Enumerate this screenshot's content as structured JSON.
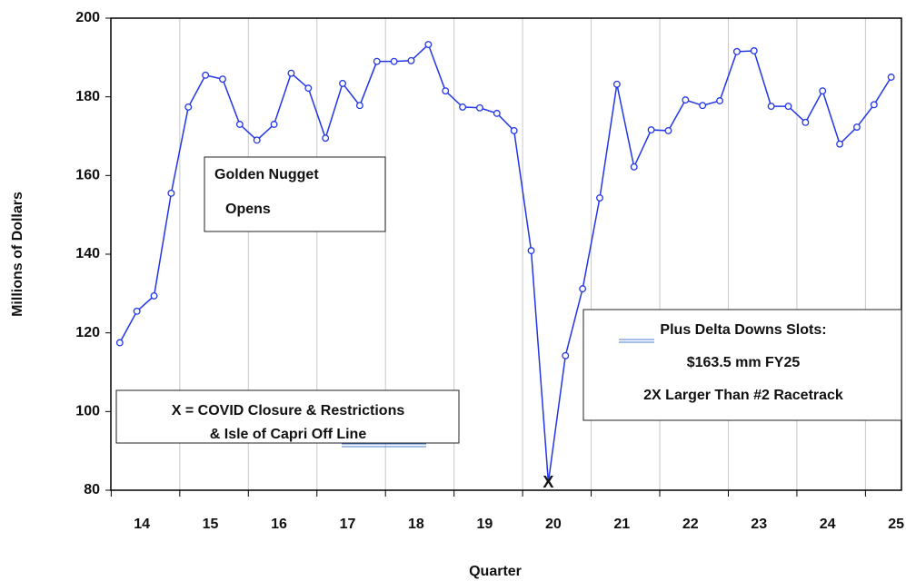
{
  "chart_data": {
    "type": "line",
    "x_label": "Quarter",
    "y_label": "Millions of Dollars",
    "x": [
      14,
      14.25,
      14.5,
      14.75,
      15,
      15.25,
      15.5,
      15.75,
      16,
      16.25,
      16.5,
      16.75,
      17,
      17.25,
      17.5,
      17.75,
      18,
      18.25,
      18.5,
      18.75,
      19,
      19.25,
      19.5,
      19.75,
      20,
      20.25,
      20.5,
      20.75,
      21,
      21.25,
      21.5,
      21.75,
      22,
      22.25,
      22.5,
      22.75,
      23,
      23.25,
      23.5,
      23.75,
      24,
      24.25,
      24.5,
      24.75,
      25,
      25.25
    ],
    "series": [
      {
        "color": "#2236e8",
        "values": [
          117.5,
          125.5,
          129.4,
          155.5,
          177.4,
          185.5,
          184.5,
          173,
          169,
          173,
          186,
          182.2,
          169.5,
          183.4,
          177.8,
          189,
          189,
          189.2,
          193.3,
          181.5,
          177.4,
          177.2,
          175.8,
          171.4,
          140.9,
          82,
          114.2,
          131.2,
          154.3,
          183.2,
          162.2,
          171.6,
          171.4,
          179.2,
          177.8,
          179,
          191.5,
          191.7,
          177.6,
          177.6,
          173.5,
          181.5,
          168,
          172.3,
          178,
          185
        ]
      }
    ],
    "highlight": {
      "index": 25,
      "label": "X",
      "color": "#8b1a1a"
    },
    "xlim": [
      13.87,
      25.4
    ],
    "xticks": [
      14,
      15,
      16,
      17,
      18,
      19,
      20,
      21,
      22,
      23,
      24,
      25
    ],
    "ylim": [
      80,
      200
    ],
    "yticks": [
      80,
      100,
      120,
      140,
      160,
      180,
      200
    ],
    "grid": "x",
    "annotations": [
      {
        "lines": [
          "Golden Nugget",
          "Opens"
        ],
        "color": "#1f5a1f"
      },
      {
        "lines": [
          "Plus Delta Downs Slots:",
          "$163.5 mm FY25",
          "2X Larger Than #2 Racetrack"
        ],
        "color": "#1f5a1f"
      },
      {
        "lines": [
          "X = COVID Closure & Restrictions",
          "& Isle of Capri Off Line"
        ],
        "color": "#8b1a1a"
      }
    ]
  }
}
